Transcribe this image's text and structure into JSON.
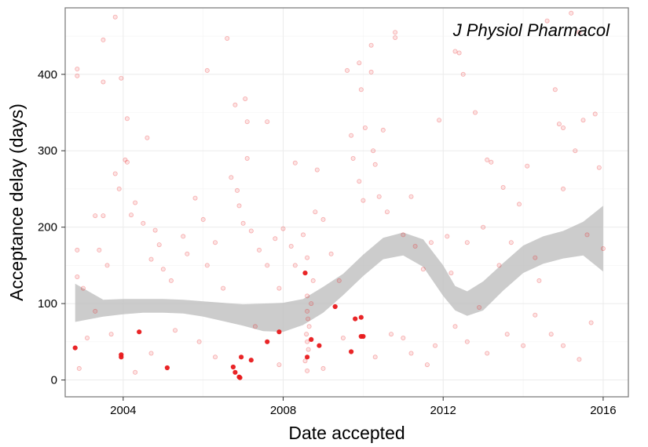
{
  "chart_data": {
    "type": "scatter",
    "annotation": "J Physiol Pharmacol",
    "xlabel": "Date accepted",
    "ylabel": "Acceptance delay (days)",
    "xlim": [
      2002.55,
      2016.63
    ],
    "ylim": [
      -22,
      487
    ],
    "x_ticks": [
      2004,
      2008,
      2012,
      2016
    ],
    "x_tick_labels": [
      "2004",
      "2008",
      "2012",
      "2016"
    ],
    "y_ticks": [
      0,
      100,
      200,
      300,
      400
    ],
    "y_tick_labels": [
      "0",
      "100",
      "200",
      "300",
      "400"
    ],
    "grid": true,
    "colors": {
      "points": "#e8191b",
      "ribbon": "#bebebe",
      "grid": "#ebebeb",
      "panel_border": "#7f7f7f"
    },
    "highlighted_points": [
      {
        "x": 2002.8,
        "y": 42
      },
      {
        "x": 2003.95,
        "y": 30
      },
      {
        "x": 2003.95,
        "y": 33
      },
      {
        "x": 2004.4,
        "y": 63
      },
      {
        "x": 2005.1,
        "y": 16
      },
      {
        "x": 2006.75,
        "y": 17
      },
      {
        "x": 2006.8,
        "y": 10
      },
      {
        "x": 2006.9,
        "y": 4
      },
      {
        "x": 2006.92,
        "y": 3
      },
      {
        "x": 2006.95,
        "y": 30
      },
      {
        "x": 2007.2,
        "y": 26
      },
      {
        "x": 2007.6,
        "y": 50
      },
      {
        "x": 2007.9,
        "y": 63
      },
      {
        "x": 2008.55,
        "y": 140
      },
      {
        "x": 2008.6,
        "y": 30
      },
      {
        "x": 2008.7,
        "y": 53
      },
      {
        "x": 2008.9,
        "y": 45
      },
      {
        "x": 2009.3,
        "y": 96
      },
      {
        "x": 2009.7,
        "y": 37
      },
      {
        "x": 2009.8,
        "y": 80
      },
      {
        "x": 2009.95,
        "y": 82
      },
      {
        "x": 2009.95,
        "y": 57
      },
      {
        "x": 2010.0,
        "y": 57
      }
    ],
    "background_points": [
      {
        "x": 2002.85,
        "y": 407
      },
      {
        "x": 2002.85,
        "y": 398
      },
      {
        "x": 2002.85,
        "y": 170
      },
      {
        "x": 2002.85,
        "y": 135
      },
      {
        "x": 2002.9,
        "y": 15
      },
      {
        "x": 2003.0,
        "y": 120
      },
      {
        "x": 2003.3,
        "y": 90
      },
      {
        "x": 2003.5,
        "y": 445
      },
      {
        "x": 2003.5,
        "y": 390
      },
      {
        "x": 2003.5,
        "y": 215
      },
      {
        "x": 2003.3,
        "y": 215
      },
      {
        "x": 2003.4,
        "y": 170
      },
      {
        "x": 2003.6,
        "y": 150
      },
      {
        "x": 2003.8,
        "y": 475
      },
      {
        "x": 2003.95,
        "y": 395
      },
      {
        "x": 2004.1,
        "y": 342
      },
      {
        "x": 2004.05,
        "y": 288
      },
      {
        "x": 2004.1,
        "y": 285
      },
      {
        "x": 2003.8,
        "y": 270
      },
      {
        "x": 2003.9,
        "y": 250
      },
      {
        "x": 2004.3,
        "y": 232
      },
      {
        "x": 2004.6,
        "y": 317
      },
      {
        "x": 2004.2,
        "y": 216
      },
      {
        "x": 2004.5,
        "y": 205
      },
      {
        "x": 2004.8,
        "y": 196
      },
      {
        "x": 2004.9,
        "y": 177
      },
      {
        "x": 2004.7,
        "y": 158
      },
      {
        "x": 2005.0,
        "y": 145
      },
      {
        "x": 2005.2,
        "y": 130
      },
      {
        "x": 2005.5,
        "y": 188
      },
      {
        "x": 2005.6,
        "y": 165
      },
      {
        "x": 2005.8,
        "y": 238
      },
      {
        "x": 2006.0,
        "y": 210
      },
      {
        "x": 2006.1,
        "y": 150
      },
      {
        "x": 2006.1,
        "y": 405
      },
      {
        "x": 2006.3,
        "y": 180
      },
      {
        "x": 2006.5,
        "y": 120
      },
      {
        "x": 2006.6,
        "y": 447
      },
      {
        "x": 2006.7,
        "y": 265
      },
      {
        "x": 2006.8,
        "y": 360
      },
      {
        "x": 2006.85,
        "y": 248
      },
      {
        "x": 2006.9,
        "y": 228
      },
      {
        "x": 2007.05,
        "y": 368
      },
      {
        "x": 2007.1,
        "y": 338
      },
      {
        "x": 2007.1,
        "y": 290
      },
      {
        "x": 2007.0,
        "y": 205
      },
      {
        "x": 2007.2,
        "y": 195
      },
      {
        "x": 2007.4,
        "y": 170
      },
      {
        "x": 2007.6,
        "y": 338
      },
      {
        "x": 2007.6,
        "y": 150
      },
      {
        "x": 2007.8,
        "y": 185
      },
      {
        "x": 2007.9,
        "y": 120
      },
      {
        "x": 2008.0,
        "y": 198
      },
      {
        "x": 2008.2,
        "y": 175
      },
      {
        "x": 2008.3,
        "y": 284
      },
      {
        "x": 2008.3,
        "y": 150
      },
      {
        "x": 2008.5,
        "y": 190
      },
      {
        "x": 2008.6,
        "y": 160
      },
      {
        "x": 2008.6,
        "y": 110
      },
      {
        "x": 2008.6,
        "y": 90
      },
      {
        "x": 2008.62,
        "y": 80
      },
      {
        "x": 2008.65,
        "y": 70
      },
      {
        "x": 2008.58,
        "y": 60
      },
      {
        "x": 2008.6,
        "y": 50
      },
      {
        "x": 2008.63,
        "y": 40
      },
      {
        "x": 2008.55,
        "y": 25
      },
      {
        "x": 2008.6,
        "y": 12
      },
      {
        "x": 2008.7,
        "y": 100
      },
      {
        "x": 2008.75,
        "y": 130
      },
      {
        "x": 2008.8,
        "y": 220
      },
      {
        "x": 2008.85,
        "y": 275
      },
      {
        "x": 2009.0,
        "y": 210
      },
      {
        "x": 2009.2,
        "y": 165
      },
      {
        "x": 2009.4,
        "y": 130
      },
      {
        "x": 2009.6,
        "y": 405
      },
      {
        "x": 2009.7,
        "y": 320
      },
      {
        "x": 2009.75,
        "y": 290
      },
      {
        "x": 2009.9,
        "y": 415
      },
      {
        "x": 2009.95,
        "y": 380
      },
      {
        "x": 2009.9,
        "y": 260
      },
      {
        "x": 2010.0,
        "y": 235
      },
      {
        "x": 2010.05,
        "y": 330
      },
      {
        "x": 2010.2,
        "y": 438
      },
      {
        "x": 2010.2,
        "y": 403
      },
      {
        "x": 2010.25,
        "y": 300
      },
      {
        "x": 2010.3,
        "y": 282
      },
      {
        "x": 2010.4,
        "y": 240
      },
      {
        "x": 2010.5,
        "y": 327
      },
      {
        "x": 2010.6,
        "y": 220
      },
      {
        "x": 2010.8,
        "y": 455
      },
      {
        "x": 2010.8,
        "y": 448
      },
      {
        "x": 2011.0,
        "y": 190
      },
      {
        "x": 2011.2,
        "y": 240
      },
      {
        "x": 2011.3,
        "y": 175
      },
      {
        "x": 2011.5,
        "y": 145
      },
      {
        "x": 2011.7,
        "y": 180
      },
      {
        "x": 2011.9,
        "y": 340
      },
      {
        "x": 2012.1,
        "y": 188
      },
      {
        "x": 2012.2,
        "y": 140
      },
      {
        "x": 2012.3,
        "y": 430
      },
      {
        "x": 2012.4,
        "y": 428
      },
      {
        "x": 2012.5,
        "y": 400
      },
      {
        "x": 2012.6,
        "y": 180
      },
      {
        "x": 2012.8,
        "y": 350
      },
      {
        "x": 2012.9,
        "y": 95
      },
      {
        "x": 2013.0,
        "y": 200
      },
      {
        "x": 2013.1,
        "y": 288
      },
      {
        "x": 2013.2,
        "y": 285
      },
      {
        "x": 2013.4,
        "y": 150
      },
      {
        "x": 2013.5,
        "y": 252
      },
      {
        "x": 2013.7,
        "y": 180
      },
      {
        "x": 2013.9,
        "y": 230
      },
      {
        "x": 2014.1,
        "y": 280
      },
      {
        "x": 2014.3,
        "y": 160
      },
      {
        "x": 2014.4,
        "y": 130
      },
      {
        "x": 2014.6,
        "y": 470
      },
      {
        "x": 2014.8,
        "y": 380
      },
      {
        "x": 2014.9,
        "y": 335
      },
      {
        "x": 2015.0,
        "y": 330
      },
      {
        "x": 2015.0,
        "y": 250
      },
      {
        "x": 2015.2,
        "y": 480
      },
      {
        "x": 2015.3,
        "y": 300
      },
      {
        "x": 2015.4,
        "y": 455
      },
      {
        "x": 2015.5,
        "y": 340
      },
      {
        "x": 2015.6,
        "y": 190
      },
      {
        "x": 2015.8,
        "y": 348
      },
      {
        "x": 2015.9,
        "y": 278
      },
      {
        "x": 2016.0,
        "y": 172
      },
      {
        "x": 2011.0,
        "y": 55
      },
      {
        "x": 2011.2,
        "y": 35
      },
      {
        "x": 2011.6,
        "y": 20
      },
      {
        "x": 2011.8,
        "y": 45
      },
      {
        "x": 2012.3,
        "y": 70
      },
      {
        "x": 2012.6,
        "y": 50
      },
      {
        "x": 2013.1,
        "y": 35
      },
      {
        "x": 2013.6,
        "y": 60
      },
      {
        "x": 2014.0,
        "y": 45
      },
      {
        "x": 2014.3,
        "y": 85
      },
      {
        "x": 2014.7,
        "y": 60
      },
      {
        "x": 2015.0,
        "y": 45
      },
      {
        "x": 2015.4,
        "y": 27
      },
      {
        "x": 2015.7,
        "y": 75
      },
      {
        "x": 2003.1,
        "y": 55
      },
      {
        "x": 2003.7,
        "y": 60
      },
      {
        "x": 2004.3,
        "y": 10
      },
      {
        "x": 2004.7,
        "y": 35
      },
      {
        "x": 2005.3,
        "y": 65
      },
      {
        "x": 2005.9,
        "y": 50
      },
      {
        "x": 2006.3,
        "y": 30
      },
      {
        "x": 2007.3,
        "y": 70
      },
      {
        "x": 2007.9,
        "y": 20
      },
      {
        "x": 2009.0,
        "y": 15
      },
      {
        "x": 2009.5,
        "y": 55
      },
      {
        "x": 2010.3,
        "y": 30
      },
      {
        "x": 2010.7,
        "y": 60
      }
    ],
    "smooth_trend": {
      "x": [
        2002.8,
        2003.5,
        2004.0,
        2004.5,
        2005.0,
        2005.5,
        2006.0,
        2006.5,
        2007.0,
        2007.5,
        2008.0,
        2008.5,
        2009.0,
        2009.5,
        2010.0,
        2010.5,
        2011.0,
        2011.5,
        2012.0,
        2012.3,
        2012.6,
        2013.0,
        2013.5,
        2014.0,
        2014.5,
        2015.0,
        2015.5,
        2016.0
      ],
      "y": [
        101,
        94,
        96,
        97,
        97,
        96,
        93,
        89,
        85,
        82,
        82,
        89,
        105,
        125,
        150,
        172,
        178,
        166,
        130,
        107,
        100,
        110,
        135,
        158,
        170,
        177,
        183,
        192
      ],
      "lower": [
        76,
        83,
        86,
        88,
        88,
        87,
        83,
        77,
        71,
        64,
        63,
        72,
        88,
        111,
        136,
        158,
        163,
        148,
        110,
        91,
        84,
        91,
        117,
        140,
        152,
        159,
        163,
        142
      ],
      "upper": [
        126,
        105,
        106,
        106,
        106,
        105,
        103,
        101,
        99,
        100,
        101,
        106,
        122,
        139,
        164,
        186,
        193,
        184,
        150,
        123,
        116,
        129,
        153,
        176,
        188,
        195,
        207,
        228
      ]
    }
  }
}
